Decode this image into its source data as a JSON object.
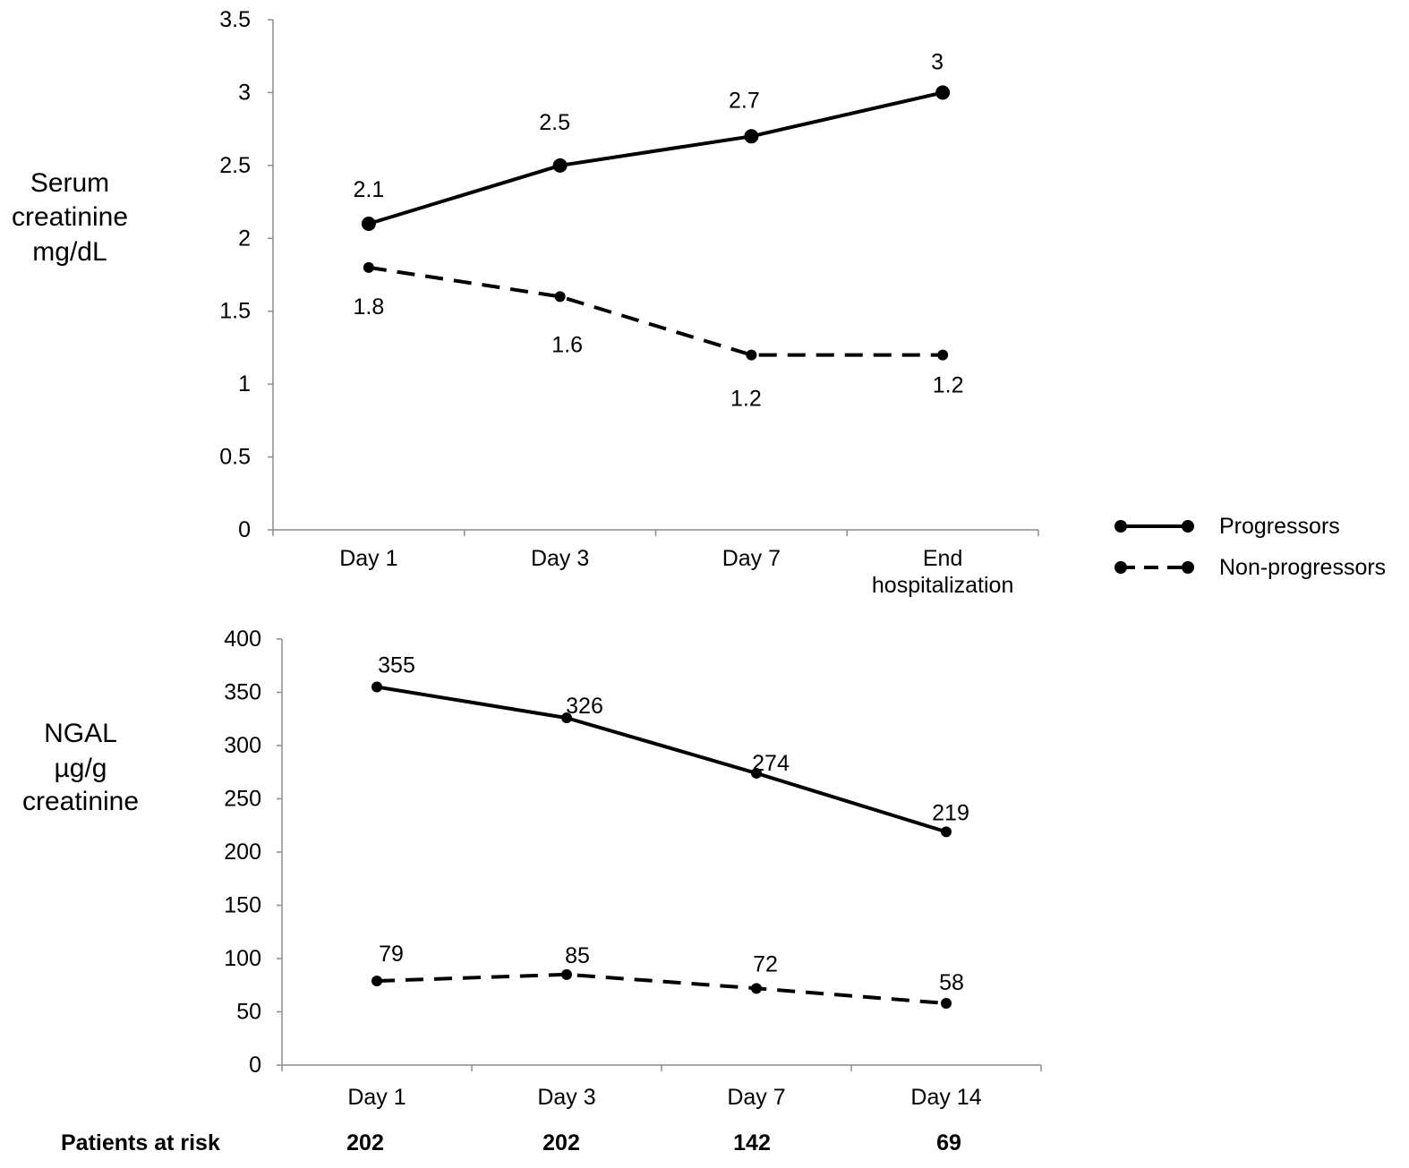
{
  "colors": {
    "line": "#000000",
    "axis": "#8c8c8c",
    "background": "#ffffff"
  },
  "legend": {
    "items": [
      {
        "label": "Progressors",
        "style": "solid"
      },
      {
        "label": "Non-progressors",
        "style": "dashed"
      }
    ]
  },
  "risk_table": {
    "label": "Patients at risk",
    "values": [
      "202",
      "202",
      "142",
      "69"
    ]
  },
  "chart_data": [
    {
      "type": "line",
      "ylabel": [
        "Serum",
        "creatinine",
        "mg/dL"
      ],
      "categories": [
        [
          "Day 1"
        ],
        [
          "Day 3"
        ],
        [
          "Day 7"
        ],
        [
          "End",
          "hospitalization"
        ]
      ],
      "ylim": [
        0,
        3.5
      ],
      "yticks": [
        "0",
        "0.5",
        "1",
        "1.5",
        "2",
        "2.5",
        "3",
        "3.5"
      ],
      "grid": false,
      "series": [
        {
          "name": "Progressors",
          "style": "solid",
          "values": [
            2.1,
            2.5,
            2.7,
            3
          ],
          "labels": [
            "2.1",
            "2.5",
            "2.7",
            "3"
          ]
        },
        {
          "name": "Non-progressors",
          "style": "dashed",
          "values": [
            1.8,
            1.6,
            1.2,
            1.2
          ],
          "labels": [
            "1.8",
            "1.6",
            "1.2",
            "1.2"
          ]
        }
      ]
    },
    {
      "type": "line",
      "ylabel": [
        "NGAL",
        "µg/g",
        "creatinine"
      ],
      "categories": [
        [
          "Day 1"
        ],
        [
          "Day 3"
        ],
        [
          "Day 7"
        ],
        [
          "Day 14"
        ]
      ],
      "ylim": [
        0,
        400
      ],
      "yticks": [
        "0",
        "50",
        "100",
        "150",
        "200",
        "250",
        "300",
        "350",
        "400"
      ],
      "grid": false,
      "series": [
        {
          "name": "Progressors",
          "style": "solid",
          "values": [
            355,
            326,
            274,
            219
          ],
          "labels": [
            "355",
            "326",
            "274",
            "219"
          ]
        },
        {
          "name": "Non-progressors",
          "style": "dashed",
          "values": [
            79,
            85,
            72,
            58
          ],
          "labels": [
            "79",
            "85",
            "72",
            "58"
          ]
        }
      ]
    }
  ]
}
